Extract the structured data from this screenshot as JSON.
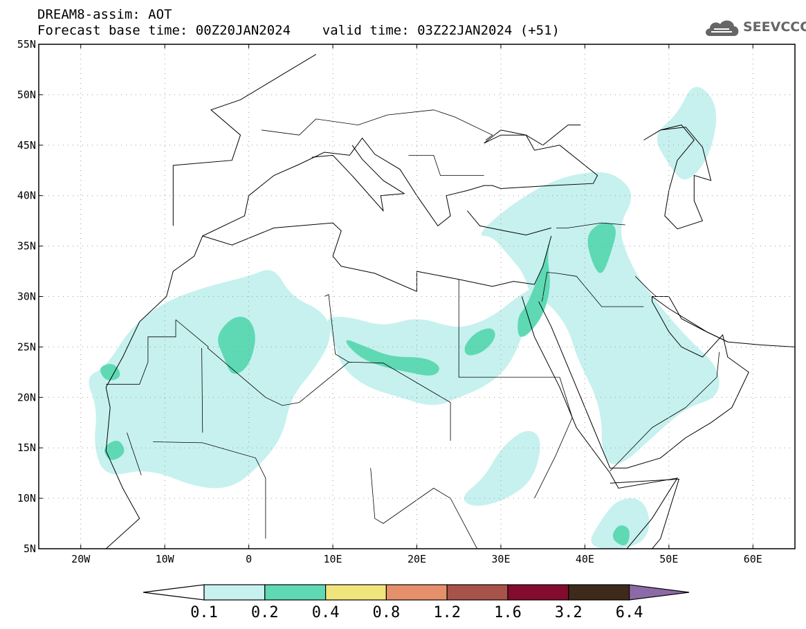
{
  "header": {
    "title_line1": "DREAM8-assim: AOT",
    "title_line2": "Forecast base time: 00Z20JAN2024    valid time: 03Z22JAN2024 (+51)"
  },
  "logo": {
    "text": "SEEVCCC",
    "icon": "cloud-icon",
    "color": "#666666"
  },
  "map": {
    "lon_range": [
      -25,
      65
    ],
    "lat_range": [
      5,
      55
    ],
    "projection": "equirectangular",
    "grid": "dotted",
    "lon_ticks": [
      {
        "value": -20,
        "label": "20W"
      },
      {
        "value": -10,
        "label": "10W"
      },
      {
        "value": 0,
        "label": "0"
      },
      {
        "value": 10,
        "label": "10E"
      },
      {
        "value": 20,
        "label": "20E"
      },
      {
        "value": 30,
        "label": "30E"
      },
      {
        "value": 40,
        "label": "40E"
      },
      {
        "value": 50,
        "label": "50E"
      },
      {
        "value": 60,
        "label": "60E"
      }
    ],
    "lat_ticks": [
      {
        "value": 55,
        "label": "55N"
      },
      {
        "value": 50,
        "label": "50N"
      },
      {
        "value": 45,
        "label": "45N"
      },
      {
        "value": 40,
        "label": "40N"
      },
      {
        "value": 35,
        "label": "35N"
      },
      {
        "value": 30,
        "label": "30N"
      },
      {
        "value": 25,
        "label": "25N"
      },
      {
        "value": 20,
        "label": "20N"
      },
      {
        "value": 15,
        "label": "15N"
      },
      {
        "value": 10,
        "label": "10N"
      },
      {
        "value": 5,
        "label": "5N"
      }
    ],
    "aot_regions": [
      {
        "level": "0.1-0.2",
        "name": "sahara-west",
        "points": [
          [
            -17,
            23
          ],
          [
            -14,
            27
          ],
          [
            -10,
            29.5
          ],
          [
            -5,
            31
          ],
          [
            0,
            32
          ],
          [
            3,
            33
          ],
          [
            5,
            30
          ],
          [
            9,
            28.5
          ],
          [
            10,
            26
          ],
          [
            8,
            23
          ],
          [
            5,
            20
          ],
          [
            4,
            16
          ],
          [
            1,
            13
          ],
          [
            -2,
            11
          ],
          [
            -6,
            11
          ],
          [
            -12,
            13
          ],
          [
            -17,
            12
          ],
          [
            -18.5,
            15
          ],
          [
            -18,
            19
          ],
          [
            -19.5,
            22
          ]
        ]
      },
      {
        "level": "0.1-0.2",
        "name": "sahara-central",
        "points": [
          [
            9,
            28
          ],
          [
            12,
            28
          ],
          [
            16,
            27
          ],
          [
            20,
            28
          ],
          [
            24,
            27
          ],
          [
            26,
            27
          ],
          [
            29,
            28
          ],
          [
            32,
            30
          ],
          [
            34,
            31
          ],
          [
            33,
            27
          ],
          [
            31,
            23
          ],
          [
            28,
            21
          ],
          [
            25,
            20
          ],
          [
            22,
            19
          ],
          [
            18,
            20
          ],
          [
            14,
            21
          ],
          [
            11,
            23
          ],
          [
            10,
            26
          ]
        ]
      },
      {
        "level": "0.1-0.2",
        "name": "east-med-arabia",
        "points": [
          [
            27,
            36
          ],
          [
            31,
            39
          ],
          [
            36,
            41.5
          ],
          [
            41,
            42.5
          ],
          [
            44,
            42
          ],
          [
            46,
            40
          ],
          [
            44,
            37
          ],
          [
            45,
            34
          ],
          [
            47,
            31
          ],
          [
            52,
            26
          ],
          [
            56,
            23
          ],
          [
            56,
            20
          ],
          [
            52,
            19
          ],
          [
            48,
            16
          ],
          [
            44,
            13
          ],
          [
            42,
            14
          ],
          [
            42,
            19
          ],
          [
            39,
            24
          ],
          [
            38,
            27
          ],
          [
            35,
            30
          ],
          [
            34,
            28
          ],
          [
            33,
            32
          ],
          [
            31,
            34
          ],
          [
            29,
            36
          ]
        ]
      },
      {
        "level": "0.1-0.2",
        "name": "caspian",
        "points": [
          [
            53,
            51.5
          ],
          [
            56,
            49
          ],
          [
            55,
            44
          ],
          [
            52,
            41
          ],
          [
            50,
            43
          ],
          [
            48,
            46
          ],
          [
            51,
            48
          ]
        ]
      },
      {
        "level": "0.1-0.2",
        "name": "horn-africa",
        "points": [
          [
            40,
            5
          ],
          [
            42,
            8
          ],
          [
            44,
            10
          ],
          [
            47,
            10
          ],
          [
            48,
            7
          ],
          [
            46,
            5
          ]
        ]
      },
      {
        "level": "0.1-0.2",
        "name": "sahel-east",
        "points": [
          [
            25,
            10
          ],
          [
            28,
            12
          ],
          [
            30,
            15
          ],
          [
            33,
            17
          ],
          [
            35,
            16
          ],
          [
            34,
            12
          ],
          [
            31,
            10
          ],
          [
            27,
            9
          ]
        ]
      },
      {
        "level": "0.2-0.4",
        "name": "libya-egypt-band",
        "points": [
          [
            11,
            26
          ],
          [
            14,
            25
          ],
          [
            17,
            24
          ],
          [
            21,
            24
          ],
          [
            23,
            23
          ],
          [
            22,
            22
          ],
          [
            19,
            22.5
          ],
          [
            16,
            23
          ],
          [
            13,
            24
          ]
        ]
      },
      {
        "level": "0.2-0.4",
        "name": "algeria-core",
        "points": [
          [
            -4,
            26
          ],
          [
            -2,
            28
          ],
          [
            0,
            28
          ],
          [
            1,
            26
          ],
          [
            0,
            23
          ],
          [
            -2,
            22
          ],
          [
            -3,
            24
          ]
        ]
      },
      {
        "level": "0.2-0.4",
        "name": "levant",
        "points": [
          [
            33,
            29
          ],
          [
            34,
            31
          ],
          [
            35,
            33
          ],
          [
            36,
            36
          ],
          [
            35.5,
            34
          ],
          [
            36,
            31
          ],
          [
            35,
            28
          ],
          [
            33,
            26
          ],
          [
            32,
            26
          ],
          [
            32,
            28
          ]
        ]
      },
      {
        "level": "0.2-0.4",
        "name": "iraq",
        "points": [
          [
            40,
            36
          ],
          [
            42,
            37.5
          ],
          [
            44,
            37
          ],
          [
            43,
            34
          ],
          [
            42,
            32
          ],
          [
            41,
            33
          ]
        ]
      },
      {
        "level": "0.2-0.4",
        "name": "western-sahara",
        "points": [
          [
            -18,
            23
          ],
          [
            -16,
            23.5
          ],
          [
            -15,
            22
          ],
          [
            -17,
            21.5
          ]
        ]
      },
      {
        "level": "0.2-0.4",
        "name": "senegal",
        "points": [
          [
            -17.5,
            15
          ],
          [
            -15.5,
            16
          ],
          [
            -14.5,
            14.5
          ],
          [
            -16.5,
            13.5
          ]
        ]
      },
      {
        "level": "0.2-0.4",
        "name": "egypt-west",
        "points": [
          [
            25.5,
            25
          ],
          [
            27,
            26.5
          ],
          [
            29,
            27
          ],
          [
            29.5,
            26
          ],
          [
            28,
            24.5
          ],
          [
            26,
            24
          ]
        ]
      },
      {
        "level": "0.2-0.4",
        "name": "horn-core",
        "points": [
          [
            43,
            6
          ],
          [
            44,
            7.5
          ],
          [
            45.5,
            7
          ],
          [
            45,
            5
          ]
        ]
      }
    ],
    "colorbar": {
      "bounds": [
        "0.1",
        "0.2",
        "0.4",
        "0.8",
        "1.2",
        "1.6",
        "3.2",
        "6.4"
      ],
      "colors": [
        "#c6f1ee",
        "#5ed9b4",
        "#f0e57c",
        "#e5906a",
        "#a8534a",
        "#820b2e",
        "#3d2a1a",
        "#8c6aa8"
      ],
      "under_color": "#ffffff",
      "over_color": "#8c6aa8"
    }
  }
}
